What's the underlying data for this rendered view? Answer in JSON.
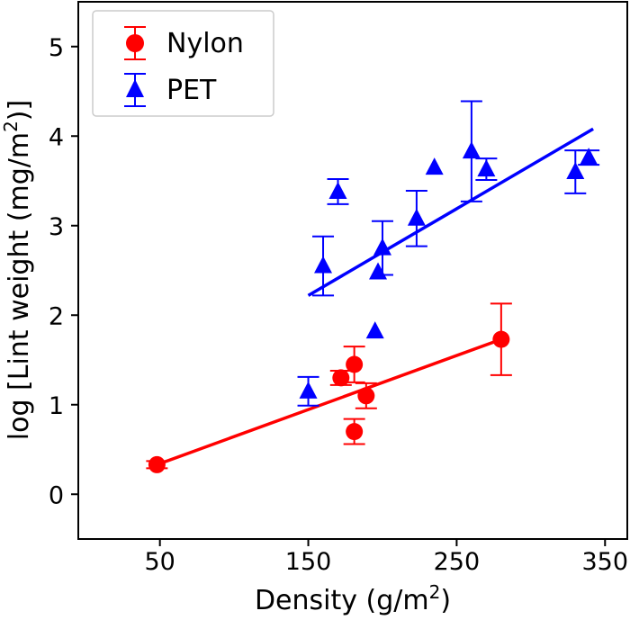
{
  "chart_data": {
    "type": "scatter",
    "title": "",
    "xlabel": "Density (g/m",
    "xlabel_sup": "2",
    "xlabel_end": ")",
    "ylabel": "log [Lint weight (mg/m",
    "ylabel_sup": "2",
    "ylabel_end": ")]",
    "xlim": [
      -5,
      365
    ],
    "ylim": [
      -0.5,
      5.5
    ],
    "xticks": [
      50,
      150,
      250,
      350
    ],
    "yticks": [
      0,
      1,
      2,
      3,
      4,
      5
    ],
    "grid": false,
    "legend_position": "top-left",
    "series": [
      {
        "name": "Nylon",
        "color": "#ff0000",
        "marker": "circle",
        "points": [
          {
            "x": 48,
            "y": 0.33,
            "err": 0.04
          },
          {
            "x": 172,
            "y": 1.3,
            "err": 0.08
          },
          {
            "x": 181,
            "y": 1.45,
            "err": 0.2
          },
          {
            "x": 181,
            "y": 0.7,
            "err": 0.14
          },
          {
            "x": 189,
            "y": 1.1,
            "err": 0.14
          },
          {
            "x": 280,
            "y": 1.73,
            "err": 0.4
          }
        ],
        "fit": {
          "x": [
            48,
            280
          ],
          "y": [
            0.33,
            1.73
          ]
        }
      },
      {
        "name": "PET",
        "color": "#0000ff",
        "marker": "triangle",
        "points": [
          {
            "x": 150,
            "y": 1.15,
            "err": 0.16
          },
          {
            "x": 160,
            "y": 2.55,
            "err": 0.33
          },
          {
            "x": 170,
            "y": 3.38,
            "err": 0.14
          },
          {
            "x": 195,
            "y": 1.82,
            "err": 0.0
          },
          {
            "x": 197,
            "y": 2.48,
            "err": 0.0
          },
          {
            "x": 200,
            "y": 2.75,
            "err": 0.3
          },
          {
            "x": 223,
            "y": 3.08,
            "err": 0.31
          },
          {
            "x": 235,
            "y": 3.65,
            "err": 0.0
          },
          {
            "x": 260,
            "y": 3.83,
            "err": 0.56
          },
          {
            "x": 270,
            "y": 3.63,
            "err": 0.12
          },
          {
            "x": 330,
            "y": 3.6,
            "err": 0.24
          },
          {
            "x": 339,
            "y": 3.76,
            "err": 0.08
          }
        ],
        "fit": {
          "x": [
            150,
            342
          ],
          "y": [
            2.22,
            4.08
          ]
        }
      }
    ]
  }
}
